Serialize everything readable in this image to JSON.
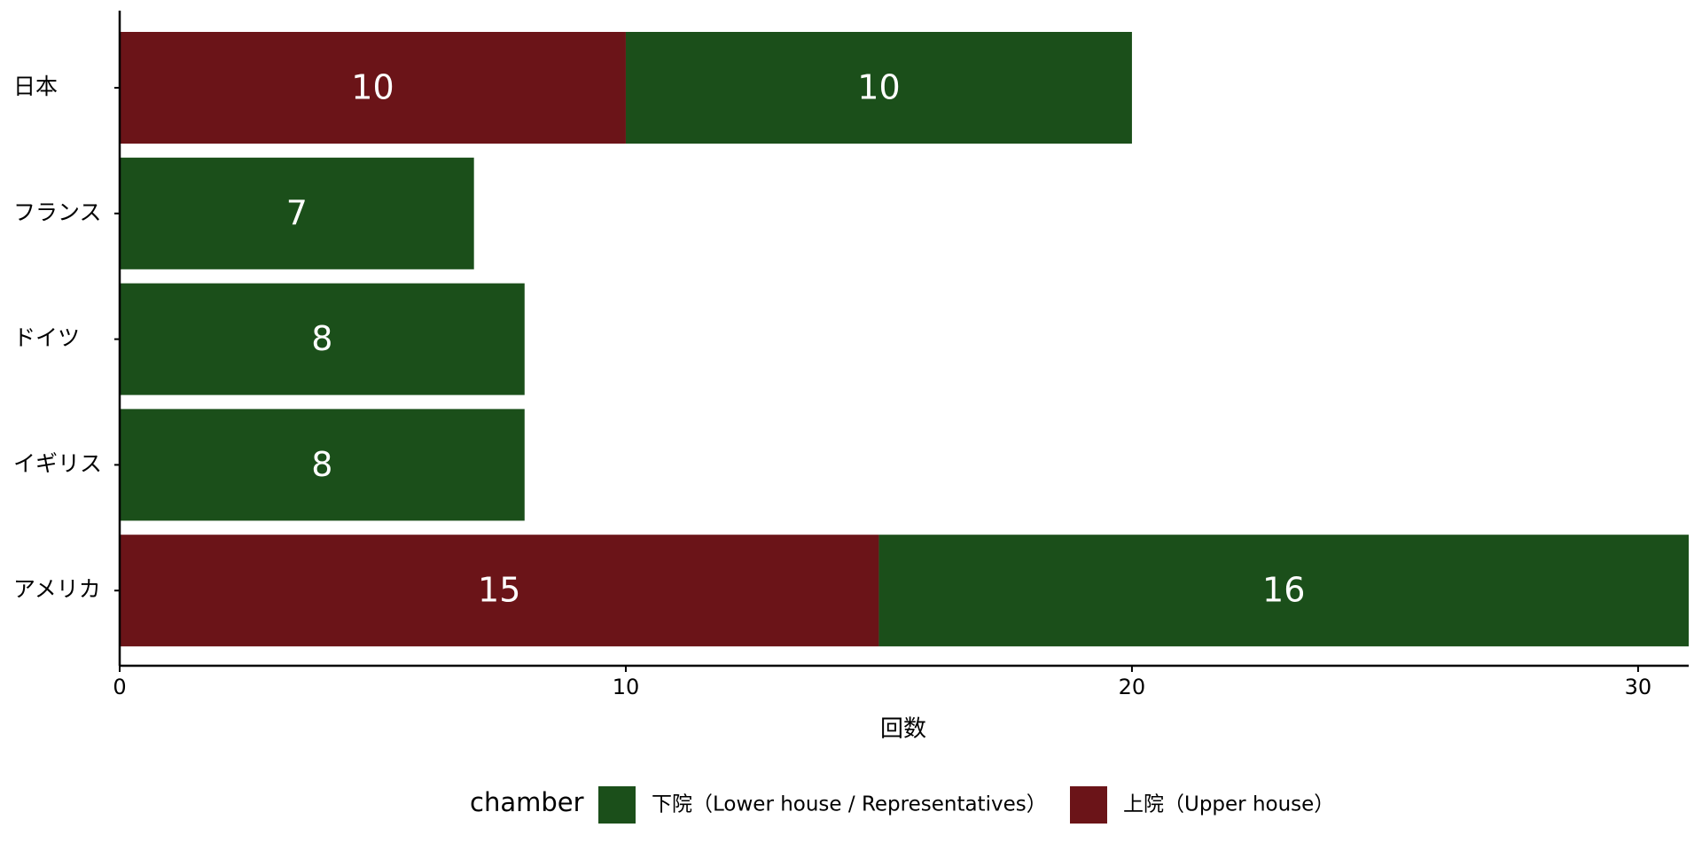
{
  "chart_data": {
    "type": "stacked_bar_horizontal",
    "categories": [
      "日本",
      "フランス",
      "ドイツ",
      "イギリス",
      "アメリカ"
    ],
    "series": [
      {
        "name": "上院（Upper house）",
        "color": "#6b1418",
        "values": [
          10,
          0,
          0,
          0,
          15
        ]
      },
      {
        "name": "下院（Lower house / Representatives）",
        "color": "#1b4f1a",
        "values": [
          10,
          7,
          8,
          8,
          16
        ]
      }
    ],
    "xlabel": "回数",
    "xlim": [
      0,
      31
    ],
    "xticks": [
      0,
      10,
      20,
      30
    ],
    "legend_title": "chamber",
    "legend_position": "bottom"
  }
}
